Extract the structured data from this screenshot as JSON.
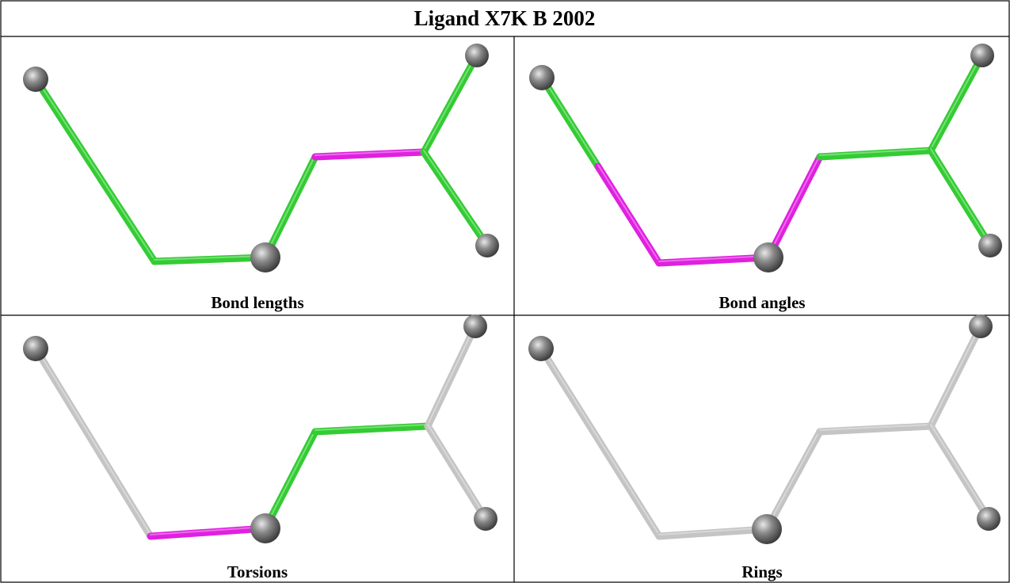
{
  "header": {
    "title": "Ligand X7K B 2002"
  },
  "panels": [
    {
      "caption": "Bond lengths"
    },
    {
      "caption": "Bond angles"
    },
    {
      "caption": "Torsions"
    },
    {
      "caption": "Rings"
    }
  ]
}
